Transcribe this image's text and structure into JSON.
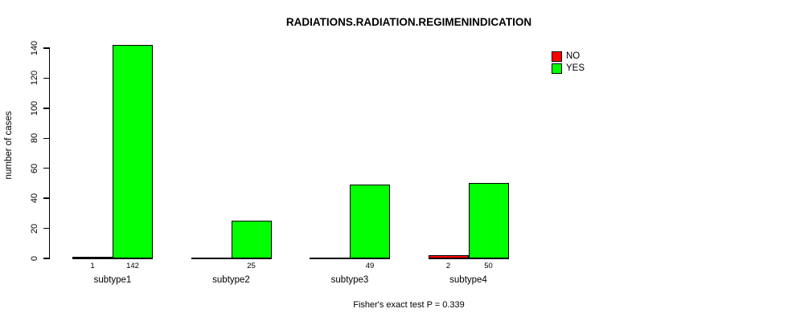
{
  "chart_data": {
    "type": "bar",
    "title": "RADIATIONS.RADIATION.REGIMENINDICATION",
    "ylabel": "number of cases",
    "xlabel": "",
    "footnote": "Fisher's exact test P = 0.339",
    "categories": [
      "subtype1",
      "subtype2",
      "subtype3",
      "subtype4"
    ],
    "series": [
      {
        "name": "NO",
        "color": "#ff0000",
        "values": [
          1,
          0,
          0,
          2
        ]
      },
      {
        "name": "YES",
        "color": "#00ff00",
        "values": [
          142,
          25,
          49,
          50
        ]
      }
    ],
    "bar_labels": [
      [
        "1",
        "142"
      ],
      [
        "",
        "25"
      ],
      [
        "",
        "49"
      ],
      [
        "2",
        "50"
      ]
    ],
    "ylim": [
      0,
      140
    ],
    "yticks": [
      0,
      20,
      40,
      60,
      80,
      100,
      120,
      140
    ],
    "grid": false,
    "legend_position": "top-right",
    "axis_color": "#000000",
    "background_color": "#ffffff"
  }
}
